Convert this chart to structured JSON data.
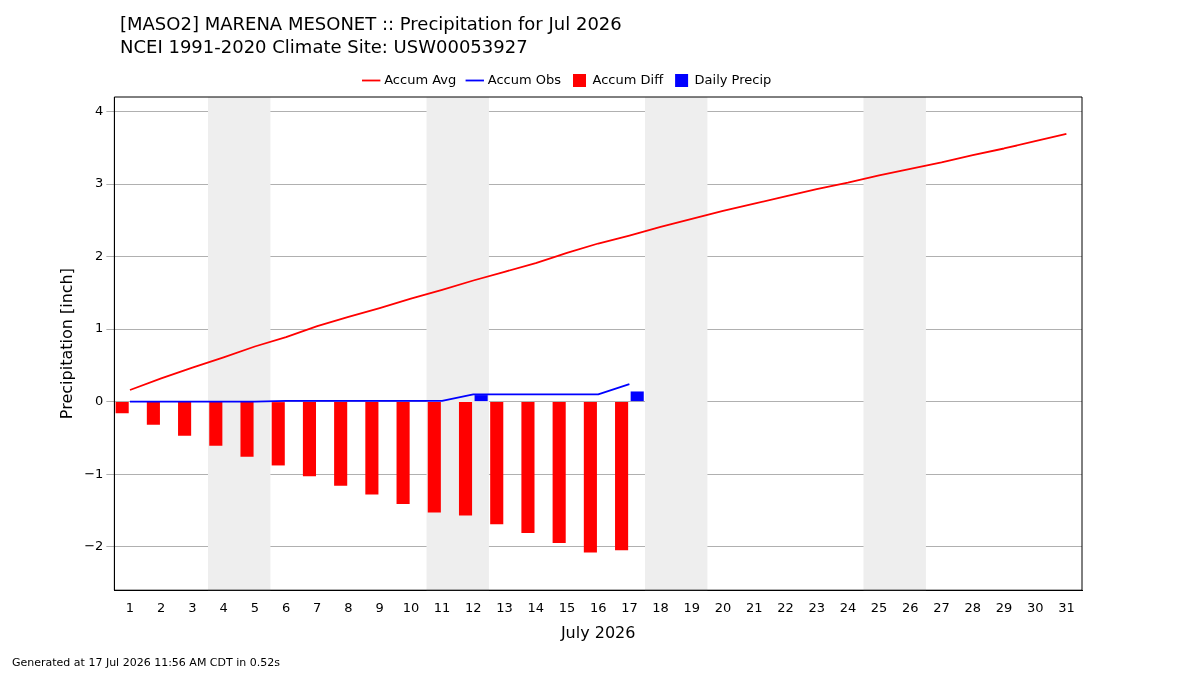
{
  "chart_data": {
    "type": "bar",
    "title": "[MASO2] MARENA MESONET :: Precipitation for Jul 2026",
    "subtitle": "NCEI 1991-2020 Climate Site: USW00053927",
    "xlabel": "July 2026",
    "ylabel": "Precipitation [inch]",
    "xlim": [
      0.5,
      31.5
    ],
    "xticks": [
      1,
      2,
      3,
      4,
      5,
      6,
      7,
      8,
      9,
      10,
      11,
      12,
      13,
      14,
      15,
      16,
      17,
      18,
      19,
      20,
      21,
      22,
      23,
      24,
      25,
      26,
      27,
      28,
      29,
      30,
      31
    ],
    "ylim": [
      -2.6,
      4.2
    ],
    "yticks": [
      {
        "value": -2,
        "label": "−2"
      },
      {
        "value": -1,
        "label": "−1"
      },
      0,
      1,
      2,
      3,
      4
    ],
    "grid": "y",
    "legend": "top",
    "bands": [
      {
        "axis": "x",
        "from": 3.5,
        "to": 5.5,
        "color": "#eeeeee"
      },
      {
        "axis": "x",
        "from": 10.5,
        "to": 12.5,
        "color": "#eeeeee"
      },
      {
        "axis": "x",
        "from": 17.5,
        "to": 19.5,
        "color": "#eeeeee"
      },
      {
        "axis": "x",
        "from": 24.5,
        "to": 26.5,
        "color": "#eeeeee"
      }
    ],
    "series": [
      {
        "name": "Accum Avg",
        "type": "line",
        "color": "#ff0000",
        "x": [
          1,
          2,
          3,
          4,
          5,
          6,
          7,
          8,
          9,
          10,
          11,
          12,
          13,
          14,
          15,
          16,
          17,
          18,
          19,
          20,
          21,
          22,
          23,
          24,
          25,
          26,
          27,
          28,
          29,
          30,
          31
        ],
        "values": [
          0.16,
          0.32,
          0.47,
          0.61,
          0.76,
          0.89,
          1.04,
          1.17,
          1.29,
          1.42,
          1.54,
          1.67,
          1.79,
          1.91,
          2.05,
          2.18,
          2.29,
          2.41,
          2.52,
          2.63,
          2.73,
          2.83,
          2.93,
          3.02,
          3.12,
          3.21,
          3.3,
          3.4,
          3.49,
          3.59,
          3.69
        ]
      },
      {
        "name": "Accum Obs",
        "type": "line",
        "color": "#0000ff",
        "x": [
          1,
          2,
          3,
          4,
          5,
          6,
          7,
          8,
          9,
          10,
          11,
          12,
          13,
          14,
          15,
          16,
          17
        ],
        "values": [
          0,
          0,
          0,
          0,
          0,
          0.01,
          0.01,
          0.01,
          0.01,
          0.01,
          0.01,
          0.1,
          0.1,
          0.1,
          0.1,
          0.1,
          0.24
        ]
      },
      {
        "name": "Accum Diff",
        "color": "#ff0000",
        "x": [
          1,
          2,
          3,
          4,
          5,
          6,
          7,
          8,
          9,
          10,
          11,
          12,
          13,
          14,
          15,
          16,
          17
        ],
        "values": [
          -0.16,
          -0.32,
          -0.47,
          -0.61,
          -0.76,
          -0.88,
          -1.03,
          -1.16,
          -1.28,
          -1.41,
          -1.53,
          -1.57,
          -1.69,
          -1.81,
          -1.95,
          -2.08,
          -2.05
        ]
      },
      {
        "name": "Daily Precip",
        "color": "#0000ff",
        "x": [
          1,
          2,
          3,
          4,
          5,
          6,
          7,
          8,
          9,
          10,
          11,
          12,
          13,
          14,
          15,
          16,
          17
        ],
        "values": [
          0,
          0,
          0,
          0,
          0,
          0,
          0,
          0,
          0,
          0,
          0,
          0.09,
          0,
          0,
          0,
          0,
          0.14
        ]
      }
    ],
    "annotations": [
      "Generated at 17 Jul 2026 11:56 AM CDT in 0.52s"
    ]
  }
}
